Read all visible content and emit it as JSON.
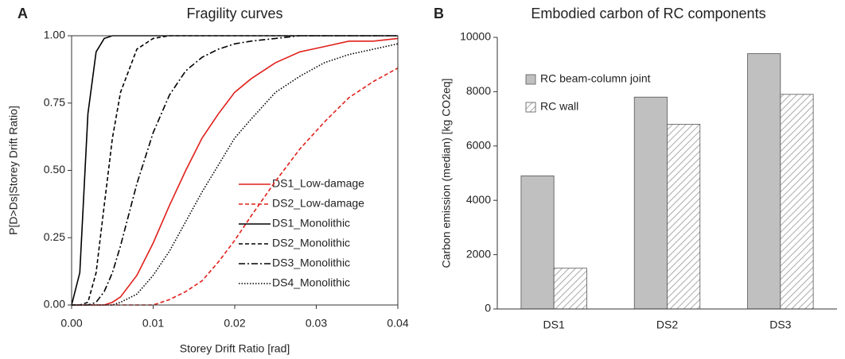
{
  "chart_data": [
    {
      "type": "line",
      "panel_label": "A",
      "title": "Fragility curves",
      "xlabel": "Storey Drift Ratio [rad]",
      "ylabel": "P[D>Ds|Storey Drift Ratio]",
      "x": [
        0,
        0.001,
        0.002,
        0.003,
        0.004,
        0.005,
        0.006,
        0.008,
        0.01,
        0.012,
        0.014,
        0.016,
        0.018,
        0.02,
        0.022,
        0.025,
        0.028,
        0.031,
        0.034,
        0.037,
        0.04
      ],
      "series": [
        {
          "name": "DS1_Low-damage",
          "color": "#e0201b",
          "dash": "solid",
          "values": [
            0,
            0,
            0,
            0,
            0,
            0.01,
            0.03,
            0.11,
            0.23,
            0.37,
            0.5,
            0.62,
            0.71,
            0.79,
            0.84,
            0.9,
            0.94,
            0.96,
            0.98,
            0.98,
            0.99
          ]
        },
        {
          "name": "DS2_Low-damage",
          "color": "#e0201b",
          "dash": "dashed",
          "values": [
            0,
            0,
            0,
            0,
            0,
            0,
            0,
            0,
            0,
            0.02,
            0.05,
            0.09,
            0.16,
            0.24,
            0.33,
            0.46,
            0.58,
            0.68,
            0.77,
            0.83,
            0.88
          ]
        },
        {
          "name": "DS1_Monolithic",
          "color": "#000000",
          "dash": "solid",
          "values": [
            0,
            0.12,
            0.71,
            0.94,
            0.99,
            1,
            1,
            1,
            1,
            1,
            1,
            1,
            1,
            1,
            1,
            1,
            1,
            1,
            1,
            1,
            1
          ]
        },
        {
          "name": "DS2_Monolithic",
          "color": "#000000",
          "dash": "dashed",
          "values": [
            0,
            0,
            0.01,
            0.12,
            0.37,
            0.62,
            0.79,
            0.95,
            0.99,
            1,
            1,
            1,
            1,
            1,
            1,
            1,
            1,
            1,
            1,
            1,
            1
          ]
        },
        {
          "name": "DS3_Monolithic",
          "color": "#000000",
          "dash": "dashdot",
          "values": [
            0,
            0,
            0,
            0.01,
            0.05,
            0.12,
            0.22,
            0.45,
            0.64,
            0.78,
            0.87,
            0.92,
            0.95,
            0.97,
            0.98,
            0.99,
            1,
            1,
            1,
            1,
            1
          ]
        },
        {
          "name": "DS4_Monolithic",
          "color": "#000000",
          "dash": "dotted",
          "values": [
            0,
            0,
            0,
            0,
            0,
            0,
            0.01,
            0.04,
            0.11,
            0.2,
            0.31,
            0.42,
            0.52,
            0.62,
            0.69,
            0.79,
            0.85,
            0.9,
            0.93,
            0.95,
            0.97
          ]
        }
      ],
      "xlim": [
        0,
        0.04
      ],
      "xticks": [
        {
          "value": 0,
          "label": "0.00"
        },
        {
          "value": 0.01,
          "label": "0.01"
        },
        {
          "value": 0.02,
          "label": "0.02"
        },
        {
          "value": 0.03,
          "label": "0.03"
        },
        {
          "value": 0.04,
          "label": "0.04"
        }
      ],
      "ylim": [
        0,
        1
      ],
      "yticks": [
        {
          "value": 0,
          "label": "0.00"
        },
        {
          "value": 0.25,
          "label": "0.25"
        },
        {
          "value": 0.5,
          "label": "0.50"
        },
        {
          "value": 0.75,
          "label": "0.75"
        },
        {
          "value": 1,
          "label": "1.00"
        }
      ],
      "legend": "lower right",
      "grid": false
    },
    {
      "type": "bar",
      "panel_label": "B",
      "title": "Embodied carbon of RC components",
      "ylabel": "Carbon emission (median) [kg CO2eq]",
      "categories": [
        "DS1",
        "DS2",
        "DS3"
      ],
      "series": [
        {
          "name": "RC beam-column joint",
          "color": "#c0c0c0",
          "hatch": false,
          "values": [
            4900,
            7800,
            9400
          ]
        },
        {
          "name": "RC wall",
          "color": "#ffffff",
          "hatch": true,
          "values": [
            1500,
            6800,
            7900
          ]
        }
      ],
      "ylim": [
        0,
        10000
      ],
      "yticks": [
        0,
        2000,
        4000,
        6000,
        8000,
        10000
      ],
      "legend": "upper left",
      "grid": false
    }
  ]
}
